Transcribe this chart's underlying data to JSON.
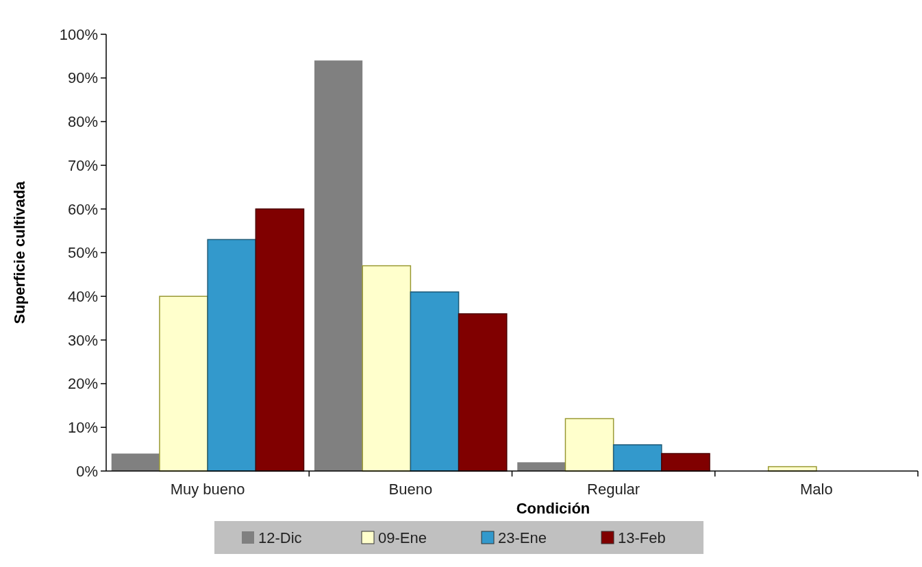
{
  "chart_data": {
    "type": "bar",
    "xlabel": "Condición",
    "ylabel": "Superficie cultivada",
    "categories": [
      "Muy bueno",
      "Bueno",
      "Regular",
      "Malo"
    ],
    "series": [
      {
        "name": "12-Dic",
        "color": "#808080",
        "values": [
          4,
          94,
          2,
          0
        ]
      },
      {
        "name": "09-Ene",
        "color": "#ffffcc",
        "values": [
          40,
          47,
          12,
          1
        ]
      },
      {
        "name": "23-Ene",
        "color": "#3399cc",
        "values": [
          53,
          41,
          6,
          0
        ]
      },
      {
        "name": "13-Feb",
        "color": "#800000",
        "values": [
          60,
          36,
          4,
          0
        ]
      }
    ],
    "ylim": [
      0,
      100
    ],
    "yticks": [
      {
        "value": 0,
        "label": "0%"
      },
      {
        "value": 10,
        "label": "10%"
      },
      {
        "value": 20,
        "label": "20%"
      },
      {
        "value": 30,
        "label": "30%"
      },
      {
        "value": 40,
        "label": "40%"
      },
      {
        "value": 50,
        "label": "50%"
      },
      {
        "value": 60,
        "label": "60%"
      },
      {
        "value": 70,
        "label": "70%"
      },
      {
        "value": 80,
        "label": "80%"
      },
      {
        "value": 90,
        "label": "90%"
      },
      {
        "value": 100,
        "label": "100%"
      }
    ],
    "legend": "bottom",
    "grid": false
  }
}
